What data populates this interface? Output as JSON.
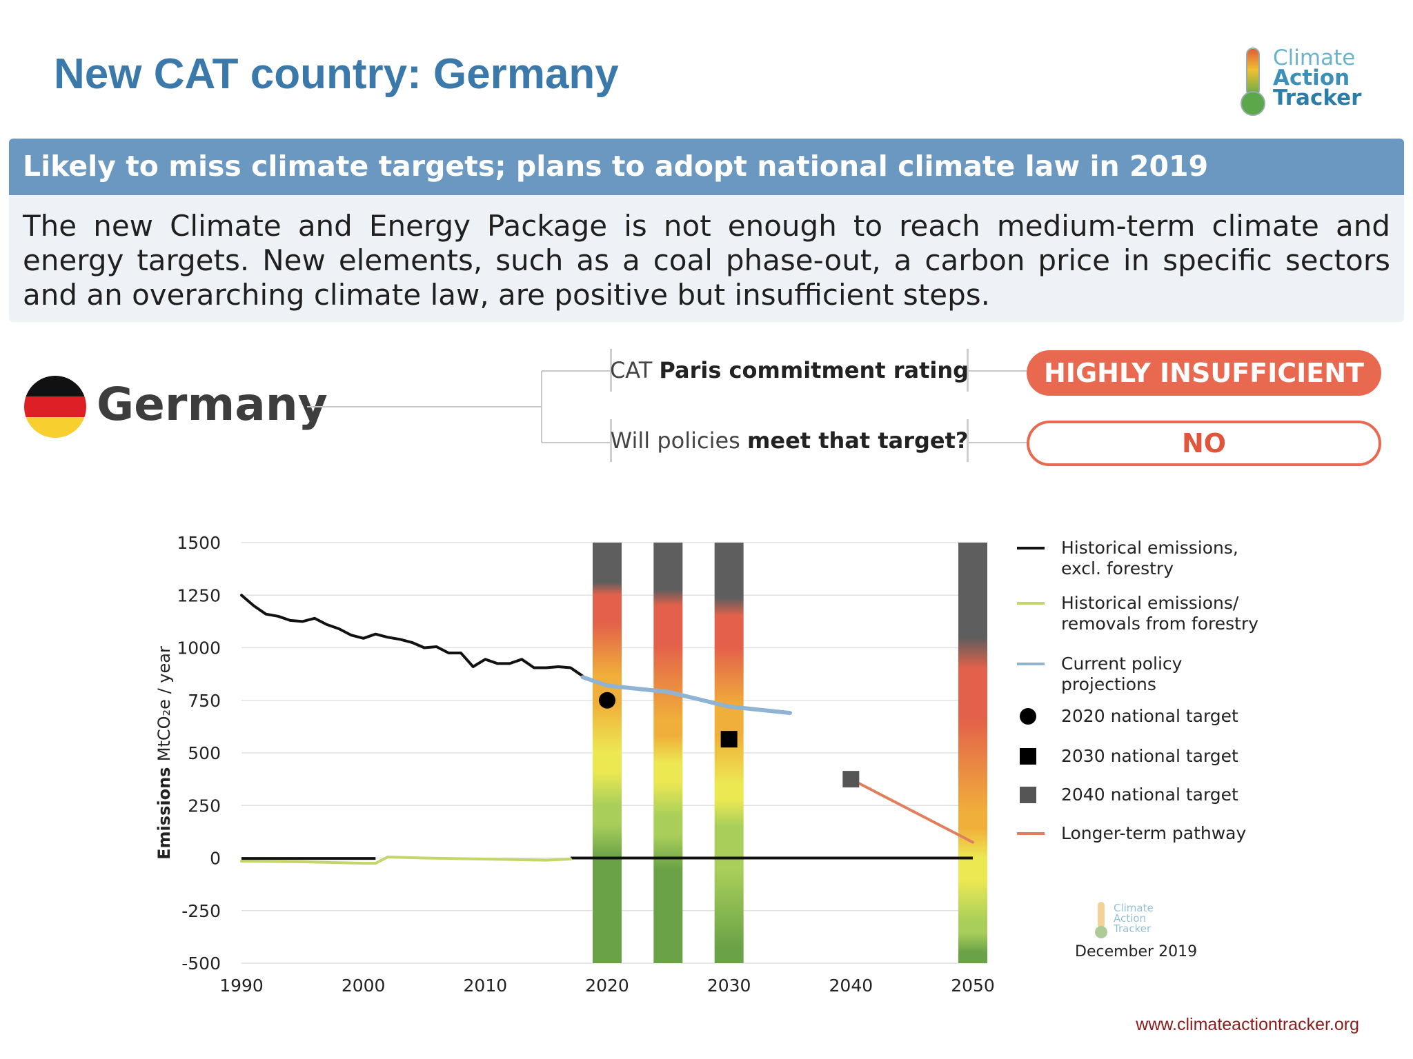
{
  "slide": {
    "title": "New CAT country: Germany",
    "logo": {
      "line1": "Climate",
      "line2": "Action",
      "line3": "Tracker"
    },
    "banner": "Likely to miss climate targets; plans to adopt national climate law in 2019",
    "summary": "The new Climate and Energy Package is not enough to reach medium-term climate and energy targets. New elements, such as a coal phase-out, a carbon price in specific sectors and an overarching climate law, are positive but insufficient steps.",
    "country": "Germany",
    "rating_label": {
      "prefix": "CAT ",
      "bold": "Paris commitment rating"
    },
    "policy_label": {
      "prefix": "Will policies ",
      "bold": "meet that target?"
    },
    "rating_value": "HIGHLY INSUFFICIENT",
    "policy_value": "NO",
    "date": "December 2019",
    "website": "www.climateactiontracker.org",
    "colors": {
      "title": "#3a79a9",
      "banner": "#6a98c0",
      "rating_pill": "#e8694f",
      "flag_black": "#111111",
      "flag_red": "#dd1f26",
      "flag_gold": "#f7cf2f"
    }
  },
  "chart_data": {
    "type": "line",
    "ylabel": "Emissions MtCO₂e / year",
    "xlabel": "",
    "xlim": [
      1990,
      2050
    ],
    "ylim": [
      -500,
      1500
    ],
    "xticks": [
      1990,
      2000,
      2010,
      2020,
      2030,
      2040,
      2050
    ],
    "yticks": [
      1500,
      1250,
      1000,
      750,
      500,
      250,
      0,
      -250,
      -500
    ],
    "grid": true,
    "legend_position": "right",
    "series": [
      {
        "name": "Historical emissions, excl. forestry",
        "color": "#111111",
        "x": [
          1990,
          1991,
          1992,
          1993,
          1994,
          1995,
          1996,
          1997,
          1998,
          1999,
          2000,
          2001,
          2002,
          2003,
          2004,
          2005,
          2006,
          2007,
          2008,
          2009,
          2010,
          2011,
          2012,
          2013,
          2014,
          2015,
          2016,
          2017,
          2018
        ],
        "y": [
          1250,
          1200,
          1160,
          1150,
          1130,
          1125,
          1140,
          1110,
          1090,
          1060,
          1045,
          1065,
          1050,
          1040,
          1025,
          1000,
          1005,
          975,
          975,
          910,
          945,
          925,
          925,
          945,
          905,
          905,
          910,
          905,
          865
        ]
      },
      {
        "name": "Historical emissions/ removals from forestry",
        "color": "#c6d56a",
        "x": [
          1990,
          1995,
          2000,
          2001,
          2002,
          2005,
          2010,
          2015,
          2017
        ],
        "y": [
          -15,
          -18,
          -25,
          -25,
          5,
          0,
          -5,
          -10,
          -5
        ]
      },
      {
        "name": "Current policy projections",
        "color": "#8fb3d2",
        "x": [
          2018,
          2020,
          2025,
          2030,
          2035
        ],
        "y": [
          860,
          820,
          790,
          720,
          690
        ]
      },
      {
        "name": "Longer-term pathway",
        "color": "#e07e5e",
        "x": [
          2040,
          2050
        ],
        "y": [
          375,
          75
        ]
      }
    ],
    "targets": [
      {
        "name": "2020 national target",
        "x": 2020,
        "y": 750,
        "marker": "circle",
        "color": "#000000"
      },
      {
        "name": "2030 national target",
        "x": 2030,
        "y": 565,
        "marker": "square",
        "color": "#000000"
      },
      {
        "name": "2040 national target",
        "x": 2040,
        "y": 375,
        "marker": "square",
        "color": "#555555"
      }
    ],
    "rating_bars": [
      {
        "year": 2020,
        "stops": [
          1500,
          1250,
          870,
          500,
          250,
          0,
          -500
        ]
      },
      {
        "year": 2025,
        "stops": [
          1500,
          1200,
          660,
          450,
          200,
          -55,
          -500
        ]
      },
      {
        "year": 2030,
        "stops": [
          1500,
          1150,
          720,
          350,
          150,
          -430,
          -500
        ]
      },
      {
        "year": 2050,
        "stops": [
          1500,
          900,
          220,
          0,
          -300,
          -450,
          -500
        ]
      }
    ],
    "rating_colors": [
      "#5e5e5e",
      "#e3614a",
      "#f0ae3a",
      "#ece852",
      "#a9cf5a",
      "#6aa247"
    ],
    "legend": [
      {
        "label_lines": [
          "Historical emissions,",
          "excl. forestry"
        ],
        "symbol": "line",
        "color": "#111111"
      },
      {
        "label_lines": [
          "Historical emissions/",
          "removals from forestry"
        ],
        "symbol": "line",
        "color": "#c6d56a"
      },
      {
        "label_lines": [
          "Current policy",
          "projections"
        ],
        "symbol": "line",
        "color": "#8fb3d2"
      },
      {
        "label_lines": [
          "2020 national target"
        ],
        "symbol": "circle",
        "color": "#000000"
      },
      {
        "label_lines": [
          "2030 national target"
        ],
        "symbol": "square",
        "color": "#000000"
      },
      {
        "label_lines": [
          "2040 national target"
        ],
        "symbol": "square",
        "color": "#555555"
      },
      {
        "label_lines": [
          "Longer-term pathway"
        ],
        "symbol": "line",
        "color": "#e07e5e"
      }
    ]
  }
}
